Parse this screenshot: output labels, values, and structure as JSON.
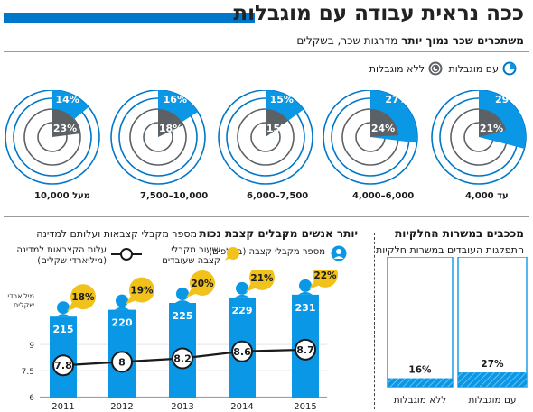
{
  "header": {
    "title": "ככה נראית עבודה עם מוגבלות",
    "subtitle_bold": "משתכרים שכר נמוך יותר",
    "subtitle_rest": "מדרגות שכר, בשקלים"
  },
  "legend_top": {
    "with": "עם מוגבלות",
    "without": "ללא מוגבלות"
  },
  "colors": {
    "accent": "#0a98e6",
    "dark": "#5c6166",
    "ring": "#0077c8",
    "gold": "#f2c21c",
    "brand": "#0077c8"
  },
  "icons": [
    "ring-with-disability-icon",
    "ring-without-disability-icon",
    "person-icon",
    "speech-bubble-icon",
    "circle-marker-icon"
  ],
  "chart_data": [
    {
      "type": "pie",
      "title": "משתכרים שכר נמוך יותר",
      "subtitle": "מדרגות שכר, בשקלים",
      "categories": [
        "עד 4,000",
        "4,000–6,000",
        "6,000–7,500",
        "7,500–10,000",
        "מעל 10,000"
      ],
      "series": [
        {
          "name": "עם מוגבלות",
          "values": [
            29,
            27,
            15,
            16,
            14
          ]
        },
        {
          "name": "ללא מוגבלות",
          "values": [
            21,
            24,
            15,
            18,
            23
          ]
        }
      ],
      "legend": "top-right"
    },
    {
      "type": "bar",
      "title": "יותר אנשים מקבלים קצבת נכות",
      "subtitle": "מספר מקבלי קצבאות ועלותם למדינה",
      "categories": [
        "2011",
        "2012",
        "2013",
        "2014",
        "2015"
      ],
      "series": [
        {
          "name": "מספר מקבלי קצבה (באלפים)",
          "values": [
            215,
            220,
            225,
            229,
            231
          ]
        },
        {
          "name": "שיעור מקבלי קצבה שעובדים",
          "values": [
            18,
            19,
            20,
            21,
            22
          ],
          "unit": "%"
        },
        {
          "name": "עלות הקצבאות למדינה (מיליארדי שקלים)",
          "type": "line",
          "values": [
            7.8,
            8,
            8.2,
            8.6,
            8.7
          ]
        }
      ],
      "ylabel": "מיליארדי שקלים",
      "yticks": [
        6,
        7.5,
        9
      ],
      "ylim": [
        6,
        10.4
      ]
    },
    {
      "type": "bar",
      "title": "מככבים במשרות החלקיות",
      "subtitle": "התפלגות העובדים במשרות חלקיות",
      "categories": [
        "עם מוגבלות",
        "ללא מוגבלות"
      ],
      "values": [
        27,
        16
      ],
      "ylim": [
        0,
        100
      ]
    }
  ],
  "rings": {
    "labels": [
      "עד 4,000",
      "4,000–6,000",
      "6,000–7,500",
      "7,500–10,000",
      "מעל 10,000"
    ],
    "with_labels": [
      "29%",
      "27%",
      "15%",
      "16%",
      "14%"
    ],
    "without_labels": [
      "21%",
      "24%",
      "15%",
      "18%",
      "23%"
    ]
  },
  "allowance": {
    "title": "יותר אנשים מקבלים קצבת נכות",
    "subtitle": "מספר מקבלי קצבאות ועלותם למדינה",
    "legend_count": "מספר מקבלי קצבה (באלפים)",
    "legend_rate_1": "שיעור מקבלי",
    "legend_rate_2": "קצבה שעובדים",
    "legend_cost_1": "עלות הקצבאות למדינה",
    "legend_cost_2": "(מיליארדי שקלים)",
    "axis_label_1": "מיליארדי",
    "axis_label_2": "שקלים",
    "count_labels": [
      "215",
      "220",
      "225",
      "229",
      "231"
    ],
    "rate_labels": [
      "18%",
      "19%",
      "20%",
      "21%",
      "22%"
    ],
    "cost_labels": [
      "7.8",
      "8",
      "8.2",
      "8.6",
      "8.7"
    ],
    "tick_labels": [
      "6",
      "7.5",
      "9"
    ]
  },
  "parttime": {
    "title": "מככבים במשרות החלקיות",
    "subtitle": "התפלגות העובדים במשרות חלקיות",
    "value_labels": [
      "27%",
      "16%"
    ],
    "category_labels": [
      "עם מוגבלות",
      "ללא מוגבלות"
    ]
  }
}
